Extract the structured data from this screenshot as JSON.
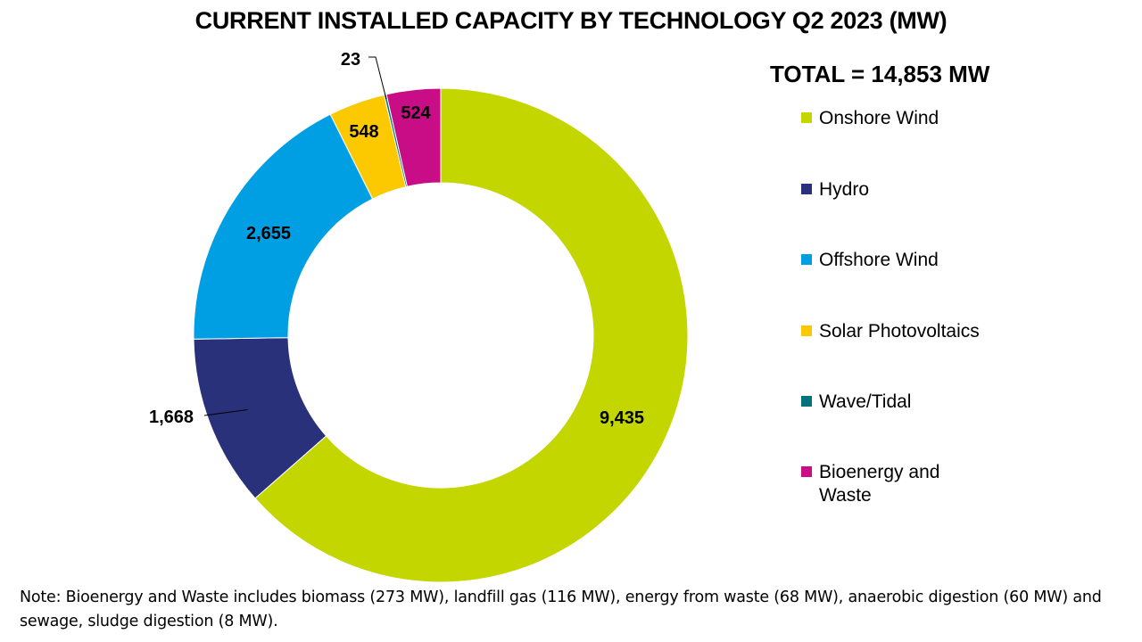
{
  "chart_data": {
    "type": "pie",
    "variant": "donut",
    "title": "CURRENT INSTALLED CAPACITY BY TECHNOLOGY Q2 2023 (MW)",
    "total_label": "TOTAL = 14,853 MW",
    "categories": [
      "Onshore Wind",
      "Hydro",
      "Offshore Wind",
      "Solar Photovoltaics",
      "Wave/Tidal",
      "Bioenergy and Waste"
    ],
    "values": [
      9435,
      1668,
      2655,
      548,
      23,
      524
    ],
    "value_labels": [
      "9,435",
      "1,668",
      "2,655",
      "548",
      "23",
      "524"
    ],
    "colors": [
      "#c4d600",
      "#283179",
      "#009fe3",
      "#fcc900",
      "#00747a",
      "#c80d86"
    ],
    "legend_position": "right",
    "note": "Note: Bioenergy and Waste includes biomass (273 MW), landfill gas (116 MW), energy from waste (68 MW), anaerobic digestion (60 MW) and sewage, sludge digestion (8 MW)."
  }
}
